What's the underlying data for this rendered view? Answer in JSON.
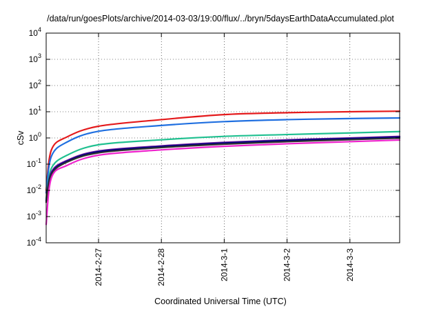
{
  "chart_data": {
    "type": "line",
    "title": "/data/run/goesPlots/archive/2014-03-03/19:00/flux/../bryn/5daysEarthDataAccumulated.plot",
    "xlabel": "Coordinated Universal Time (UTC)",
    "ylabel": "cSv",
    "yscale": "log",
    "ylim": [
      0.0001,
      10000
    ],
    "xlim": [
      "2014-02-26 04:00",
      "2014-03-03 19:00"
    ],
    "x_ticks": [
      "2014-2-27",
      "2014-2-28",
      "2014-3-1",
      "2014-3-2",
      "2014-3-3"
    ],
    "y_ticks": [
      {
        "base": "10",
        "exp": "-4"
      },
      {
        "base": "10",
        "exp": "-3"
      },
      {
        "base": "10",
        "exp": "-2"
      },
      {
        "base": "10",
        "exp": "-1"
      },
      {
        "base": "10",
        "exp": "0"
      },
      {
        "base": "10",
        "exp": "1"
      },
      {
        "base": "10",
        "exp": "2"
      },
      {
        "base": "10",
        "exp": "3"
      },
      {
        "base": "10",
        "exp": "4"
      }
    ],
    "grid": true,
    "legend": "none",
    "series": [
      {
        "color": "#e41a1c",
        "points": [
          [
            "2014-02-26 04:00",
            0.01
          ],
          [
            "2014-02-26 06:00",
            0.35
          ],
          [
            "2014-02-26 12:00",
            1.1
          ],
          [
            "2014-02-27 00:00",
            2.8
          ],
          [
            "2014-02-28 00:00",
            5.0
          ],
          [
            "2014-03-01 00:00",
            7.8
          ],
          [
            "2014-03-02 00:00",
            9.2
          ],
          [
            "2014-03-03 00:00",
            10.0
          ],
          [
            "2014-03-03 19:00",
            10.5
          ]
        ]
      },
      {
        "color": "#1f6fe0",
        "points": [
          [
            "2014-02-26 04:00",
            0.008
          ],
          [
            "2014-02-26 06:00",
            0.2
          ],
          [
            "2014-02-26 12:00",
            0.7
          ],
          [
            "2014-02-27 00:00",
            1.8
          ],
          [
            "2014-02-28 00:00",
            3.0
          ],
          [
            "2014-03-01 00:00",
            4.2
          ],
          [
            "2014-03-02 00:00",
            5.0
          ],
          [
            "2014-03-03 00:00",
            5.5
          ],
          [
            "2014-03-03 19:00",
            5.8
          ]
        ]
      },
      {
        "color": "#20c090",
        "points": [
          [
            "2014-02-26 04:00",
            0.005
          ],
          [
            "2014-02-26 06:00",
            0.07
          ],
          [
            "2014-02-26 12:00",
            0.22
          ],
          [
            "2014-02-27 00:00",
            0.55
          ],
          [
            "2014-02-28 00:00",
            0.85
          ],
          [
            "2014-03-01 00:00",
            1.15
          ],
          [
            "2014-03-02 00:00",
            1.35
          ],
          [
            "2014-03-03 00:00",
            1.55
          ],
          [
            "2014-03-03 19:00",
            1.75
          ]
        ]
      },
      {
        "color": "#7a1fa0",
        "points": [
          [
            "2014-02-26 04:00",
            0.004
          ],
          [
            "2014-02-26 06:00",
            0.05
          ],
          [
            "2014-02-26 12:00",
            0.14
          ],
          [
            "2014-02-27 00:00",
            0.32
          ],
          [
            "2014-02-28 00:00",
            0.5
          ],
          [
            "2014-03-01 00:00",
            0.68
          ],
          [
            "2014-03-02 00:00",
            0.85
          ],
          [
            "2014-03-03 00:00",
            1.0
          ],
          [
            "2014-03-03 19:00",
            1.15
          ]
        ]
      },
      {
        "color": "#000080",
        "points": [
          [
            "2014-02-26 04:00",
            0.004
          ],
          [
            "2014-02-26 06:00",
            0.045
          ],
          [
            "2014-02-26 12:00",
            0.13
          ],
          [
            "2014-02-27 00:00",
            0.3
          ],
          [
            "2014-02-28 00:00",
            0.47
          ],
          [
            "2014-03-01 00:00",
            0.64
          ],
          [
            "2014-03-02 00:00",
            0.8
          ],
          [
            "2014-03-03 00:00",
            0.95
          ],
          [
            "2014-03-03 19:00",
            1.08
          ]
        ]
      },
      {
        "color": "#303030",
        "points": [
          [
            "2014-02-26 04:00",
            0.0035
          ],
          [
            "2014-02-26 06:00",
            0.04
          ],
          [
            "2014-02-26 12:00",
            0.12
          ],
          [
            "2014-02-27 00:00",
            0.27
          ],
          [
            "2014-02-28 00:00",
            0.43
          ],
          [
            "2014-03-01 00:00",
            0.58
          ],
          [
            "2014-03-02 00:00",
            0.72
          ],
          [
            "2014-03-03 00:00",
            0.86
          ],
          [
            "2014-03-03 19:00",
            0.98
          ]
        ]
      },
      {
        "color": "#ee22cc",
        "points": [
          [
            "2014-02-26 04:00",
            0.0005
          ],
          [
            "2014-02-26 06:00",
            0.03
          ],
          [
            "2014-02-26 12:00",
            0.09
          ],
          [
            "2014-02-27 00:00",
            0.22
          ],
          [
            "2014-02-28 00:00",
            0.35
          ],
          [
            "2014-03-01 00:00",
            0.48
          ],
          [
            "2014-03-02 00:00",
            0.6
          ],
          [
            "2014-03-03 00:00",
            0.72
          ],
          [
            "2014-03-03 19:00",
            0.83
          ]
        ]
      }
    ]
  }
}
